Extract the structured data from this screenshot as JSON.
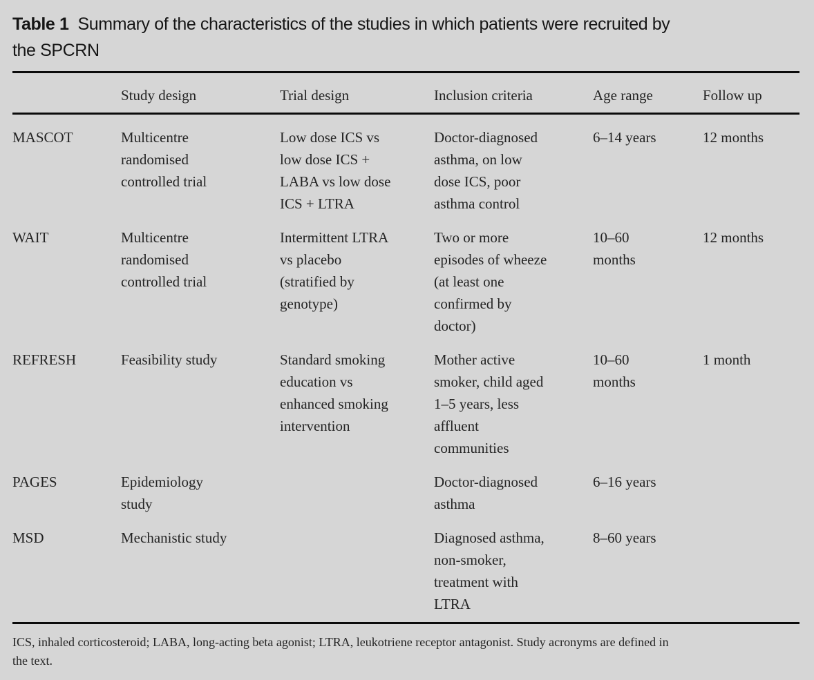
{
  "title": {
    "label": "Table 1",
    "caption": "Summary of the characteristics of the studies in which patients were recruited by\nthe SPCRN"
  },
  "colors": {
    "background": "#d6d6d6",
    "text": "#242424",
    "rule": "#0b0b0b"
  },
  "table": {
    "columns": [
      "",
      "Study design",
      "Trial design",
      "Inclusion criteria",
      "Age range",
      "Follow up"
    ],
    "row_keys": [
      "study",
      "study_design",
      "trial_design",
      "inclusion_criteria",
      "age_range",
      "follow_up"
    ],
    "rows": [
      {
        "study": "MASCOT",
        "study_design": "Multicentre\nrandomised\ncontrolled trial",
        "trial_design": "Low dose ICS vs\nlow dose ICS +\nLABA vs low dose\nICS + LTRA",
        "inclusion_criteria": "Doctor-diagnosed\nasthma, on low\ndose ICS, poor\nasthma control",
        "age_range": "6–14 years",
        "follow_up": "12 months"
      },
      {
        "study": "WAIT",
        "study_design": "Multicentre\nrandomised\ncontrolled trial",
        "trial_design": "Intermittent LTRA\nvs placebo\n(stratified by\ngenotype)",
        "inclusion_criteria": "Two or more\nepisodes of wheeze\n(at least one\nconfirmed by\ndoctor)",
        "age_range": "10–60\nmonths",
        "follow_up": "12 months"
      },
      {
        "study": "REFRESH",
        "study_design": "Feasibility study",
        "trial_design": "Standard smoking\neducation vs\nenhanced smoking\nintervention",
        "inclusion_criteria": "Mother active\nsmoker, child aged\n1–5 years, less\naffluent\ncommunities",
        "age_range": "10–60\nmonths",
        "follow_up": "1 month"
      },
      {
        "study": "PAGES",
        "study_design": "Epidemiology\nstudy",
        "trial_design": "",
        "inclusion_criteria": "Doctor-diagnosed\nasthma",
        "age_range": "6–16 years",
        "follow_up": ""
      },
      {
        "study": "MSD",
        "study_design": "Mechanistic study",
        "trial_design": "",
        "inclusion_criteria": "Diagnosed asthma,\nnon-smoker,\ntreatment with\nLTRA",
        "age_range": "8–60 years",
        "follow_up": ""
      }
    ]
  },
  "footnote": "ICS, inhaled corticosteroid; LABA, long-acting beta agonist; LTRA, leukotriene receptor antagonist. Study acronyms are defined in\nthe text."
}
